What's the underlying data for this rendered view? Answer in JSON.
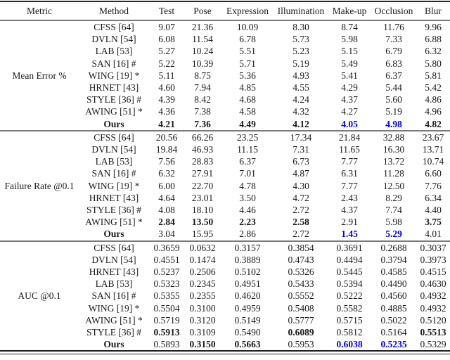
{
  "colors": {
    "text": "#1a1a1a",
    "highlight_blue": "#0000EE",
    "rule_gray": "#7a7a7a"
  },
  "header": {
    "columns": [
      "Metric",
      "Method",
      "Test",
      "Pose",
      "Expression",
      "Illumination",
      "Make-up",
      "Occlusion",
      "Blur"
    ]
  },
  "sections": [
    {
      "metric": "Mean Error %",
      "rows": [
        {
          "method": "CFSS [64]",
          "values": [
            "9.07",
            "21.36",
            "10.09",
            "8.30",
            "8.74",
            "11.76",
            "9.96"
          ],
          "em": [
            "",
            "",
            "",
            "",
            "",
            "",
            ""
          ]
        },
        {
          "method": "DVLN [54]",
          "values": [
            "6.08",
            "11.54",
            "6.78",
            "5.73",
            "5.98",
            "7.33",
            "6.88"
          ],
          "em": [
            "",
            "",
            "",
            "",
            "",
            "",
            ""
          ]
        },
        {
          "method": "LAB [53]",
          "values": [
            "5.27",
            "10.24",
            "5.51",
            "5.23",
            "5.15",
            "6.79",
            "6.32"
          ],
          "em": [
            "",
            "",
            "",
            "",
            "",
            "",
            ""
          ]
        },
        {
          "method": "SAN [16] #",
          "values": [
            "5.22",
            "10.39",
            "5.71",
            "5.19",
            "5.49",
            "6.83",
            "5.80"
          ],
          "em": [
            "",
            "",
            "",
            "",
            "",
            "",
            ""
          ]
        },
        {
          "method": "WING [19] *",
          "values": [
            "5.11",
            "8.75",
            "5.36",
            "4.93",
            "5.41",
            "6.37",
            "5.81"
          ],
          "em": [
            "",
            "",
            "",
            "",
            "",
            "",
            ""
          ]
        },
        {
          "method": "HRNET [43]",
          "values": [
            "4.60",
            "7.94",
            "4.85",
            "4.55",
            "4.29",
            "5.44",
            "5.42"
          ],
          "em": [
            "",
            "",
            "",
            "",
            "",
            "",
            ""
          ]
        },
        {
          "method": "STYLE [36] #",
          "values": [
            "4.39",
            "8.42",
            "4.68",
            "4.24",
            "4.37",
            "5.60",
            "4.86"
          ],
          "em": [
            "",
            "",
            "",
            "",
            "",
            "",
            ""
          ]
        },
        {
          "method": "AWING [51] *",
          "values": [
            "4.36",
            "7.38",
            "4.58",
            "4.32",
            "4.27",
            "5.19",
            "4.96"
          ],
          "em": [
            "",
            "",
            "",
            "",
            "",
            "",
            ""
          ]
        },
        {
          "method": "Ours",
          "bold_method": true,
          "values": [
            "4.21",
            "7.36",
            "4.49",
            "4.12",
            "4.05",
            "4.98",
            "4.82"
          ],
          "em": [
            "b",
            "b",
            "b",
            "b",
            "blue",
            "blue",
            "b"
          ]
        }
      ]
    },
    {
      "metric": "Failure Rate @0.1",
      "rows": [
        {
          "method": "CFSS [64]",
          "values": [
            "20.56",
            "66.26",
            "23.25",
            "17.34",
            "21.84",
            "32.88",
            "23.67"
          ],
          "em": [
            "",
            "",
            "",
            "",
            "",
            "",
            ""
          ]
        },
        {
          "method": "DVLN [54]",
          "values": [
            "19.84",
            "46.93",
            "11.15",
            "7.31",
            "11.65",
            "16.30",
            "13.71"
          ],
          "em": [
            "",
            "",
            "",
            "",
            "",
            "",
            ""
          ]
        },
        {
          "method": "LAB [53]",
          "values": [
            "7.56",
            "28.83",
            "6.37",
            "6.73",
            "7.77",
            "13.72",
            "10.74"
          ],
          "em": [
            "",
            "",
            "",
            "",
            "",
            "",
            ""
          ]
        },
        {
          "method": "SAN [16] #",
          "values": [
            "6.32",
            "27.91",
            "7.01",
            "4.87",
            "6.31",
            "11.28",
            "6.60"
          ],
          "em": [
            "",
            "",
            "",
            "",
            "",
            "",
            ""
          ]
        },
        {
          "method": "WING [19] *",
          "values": [
            "6.00",
            "22.70",
            "4.78",
            "4.30",
            "7.77",
            "12.50",
            "7.76"
          ],
          "em": [
            "",
            "",
            "",
            "",
            "",
            "",
            ""
          ]
        },
        {
          "method": "HRNET [43]",
          "values": [
            "4.64",
            "23.01",
            "3.50",
            "4.72",
            "2.43",
            "8.29",
            "6.34"
          ],
          "em": [
            "",
            "",
            "",
            "",
            "",
            "",
            ""
          ]
        },
        {
          "method": "STYLE [36] #",
          "values": [
            "4.08",
            "18.10",
            "4.46",
            "2.72",
            "4.37",
            "7.74",
            "4.40"
          ],
          "em": [
            "",
            "",
            "",
            "",
            "",
            "",
            ""
          ]
        },
        {
          "method": "AWING [51] *",
          "values": [
            "2.84",
            "13.50",
            "2.23",
            "2.58",
            "2.91",
            "5.98",
            "3.75"
          ],
          "em": [
            "b",
            "b",
            "b",
            "b",
            "",
            "",
            "b"
          ]
        },
        {
          "method": "Ours",
          "bold_method": true,
          "values": [
            "3.04",
            "15.95",
            "2.86",
            "2.72",
            "1.45",
            "5.29",
            "4.01"
          ],
          "em": [
            "",
            "",
            "",
            "",
            "blue",
            "blue",
            ""
          ]
        }
      ]
    },
    {
      "metric": "AUC @0.1",
      "rows": [
        {
          "method": "CFSS [64]",
          "values": [
            "0.3659",
            "0.0632",
            "0.3157",
            "0.3854",
            "0.3691",
            "0.2688",
            "0.3037"
          ],
          "em": [
            "",
            "",
            "",
            "",
            "",
            "",
            ""
          ]
        },
        {
          "method": "DVLN [54]",
          "values": [
            "0.4551",
            "0.1474",
            "0.3889",
            "0.4743",
            "0.4494",
            "0.3794",
            "0.3973"
          ],
          "em": [
            "",
            "",
            "",
            "",
            "",
            "",
            ""
          ]
        },
        {
          "method": "HRNET [43]",
          "values": [
            "0.5237",
            "0.2506",
            "0.5102",
            "0.5326",
            "0.5445",
            "0.4585",
            "0.4515"
          ],
          "em": [
            "",
            "",
            "",
            "",
            "",
            "",
            ""
          ]
        },
        {
          "method": "LAB [53]",
          "values": [
            "0.5323",
            "0.2345",
            "0.4951",
            "0.5433",
            "0.5394",
            "0.4490",
            "0.4630"
          ],
          "em": [
            "",
            "",
            "",
            "",
            "",
            "",
            ""
          ]
        },
        {
          "method": "SAN [16] #",
          "values": [
            "0.5355",
            "0.2355",
            "0.4620",
            "0.5552",
            "0.5222",
            "0.4560",
            "0.4932"
          ],
          "em": [
            "",
            "",
            "",
            "",
            "",
            "",
            ""
          ]
        },
        {
          "method": "WING [19] *",
          "values": [
            "0.5504",
            "0.3100",
            "0.4959",
            "0.5408",
            "0.5582",
            "0.4885",
            "0.4932"
          ],
          "em": [
            "",
            "",
            "",
            "",
            "",
            "",
            ""
          ]
        },
        {
          "method": "AWING [51] *",
          "values": [
            "0.5719",
            "0.3120",
            "0.5149",
            "0.5777",
            "0.5715",
            "0.5022",
            "0.5120"
          ],
          "em": [
            "",
            "",
            "",
            "",
            "",
            "",
            ""
          ]
        },
        {
          "method": "STYLE [36] #",
          "values": [
            "0.5913",
            "0.3109",
            "0.5490",
            "0.6089",
            "0.5812",
            "0.5164",
            "0.5513"
          ],
          "em": [
            "b",
            "",
            "",
            "b",
            "",
            "",
            "b"
          ]
        },
        {
          "method": "Ours",
          "bold_method": true,
          "values": [
            "0.5893",
            "0.3150",
            "0.5663",
            "0.5953",
            "0.6038",
            "0.5235",
            "0.5329"
          ],
          "em": [
            "",
            "b",
            "b",
            "",
            "blue",
            "blue",
            ""
          ]
        }
      ]
    }
  ]
}
